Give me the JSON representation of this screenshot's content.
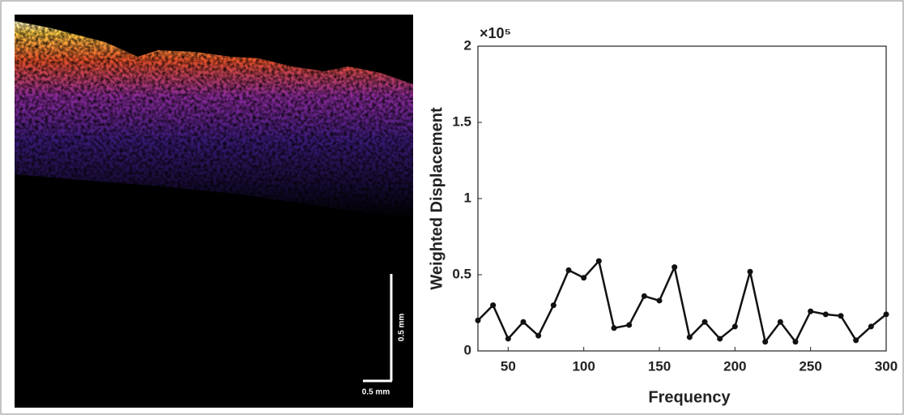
{
  "image": {
    "scale_labels": [
      "0.5 mm",
      "0.5 mm"
    ]
  },
  "chart_data": {
    "type": "line",
    "xlabel": "Frequency",
    "ylabel": "Weighted Displacement",
    "y_scale_label": "×10⁵",
    "x": [
      30,
      40,
      50,
      60,
      70,
      80,
      90,
      100,
      110,
      120,
      130,
      140,
      150,
      160,
      170,
      180,
      190,
      200,
      210,
      220,
      230,
      240,
      250,
      260,
      270,
      280,
      290,
      300
    ],
    "values": [
      0.2,
      0.3,
      0.08,
      0.19,
      0.1,
      0.3,
      0.53,
      0.48,
      0.59,
      0.15,
      0.17,
      0.36,
      0.33,
      0.55,
      0.09,
      0.19,
      0.08,
      0.16,
      0.52,
      0.06,
      0.19,
      0.06,
      0.26,
      0.24,
      0.23,
      0.07,
      0.16,
      0.24
    ],
    "color": "#111111",
    "xlim": [
      30,
      300
    ],
    "xticks": [
      50,
      100,
      150,
      200,
      250,
      300
    ],
    "ylim": [
      0,
      2
    ],
    "yticks": [
      0,
      0.5,
      1,
      1.5,
      2
    ],
    "grid": false
  }
}
